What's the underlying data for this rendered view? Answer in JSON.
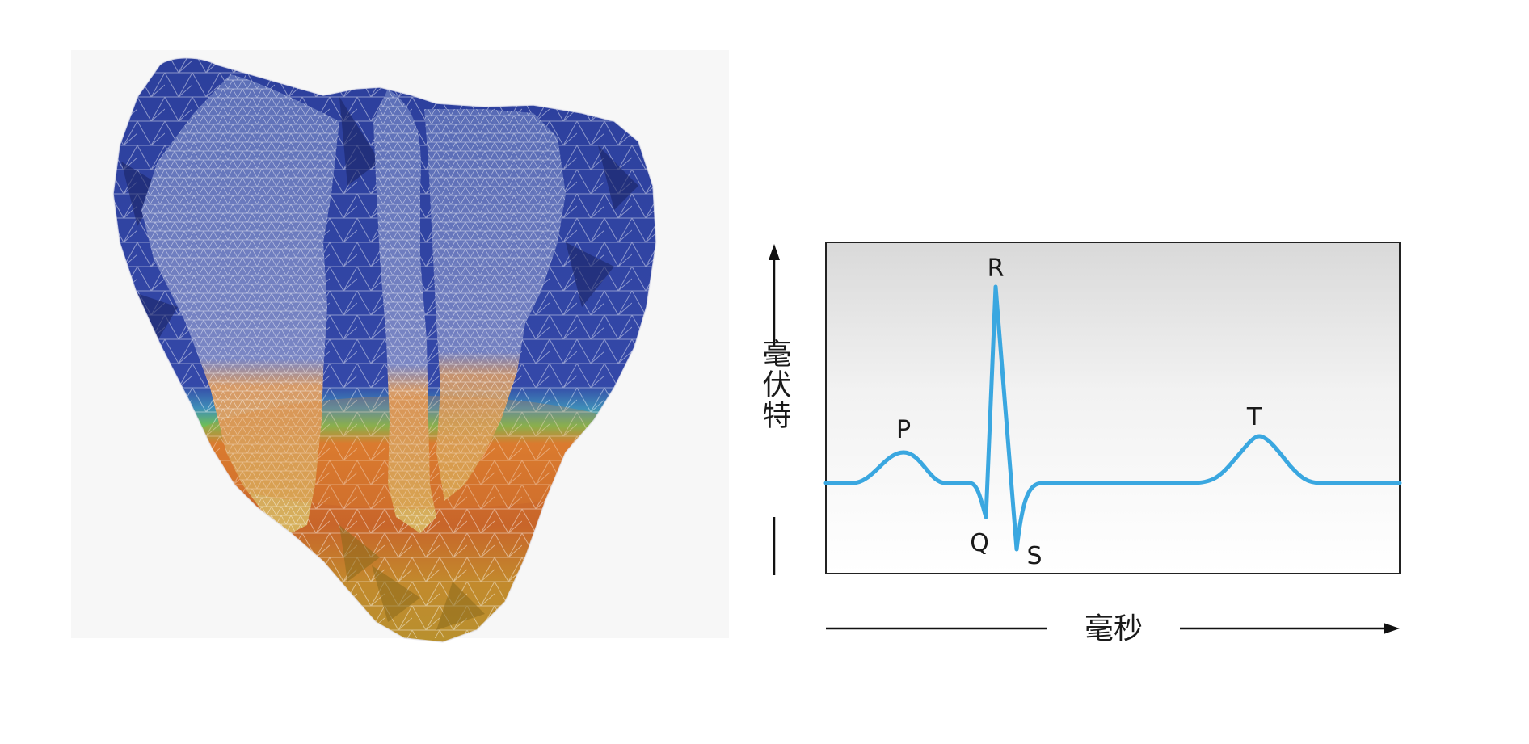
{
  "ecg": {
    "y_axis_label": "毫伏特",
    "x_axis_label": "毫秒",
    "waves": [
      {
        "label": "P"
      },
      {
        "label": "Q"
      },
      {
        "label": "R"
      },
      {
        "label": "S"
      },
      {
        "label": "T"
      }
    ],
    "trace_color": "#3aa7e0"
  },
  "heart_mesh": {
    "colors": {
      "cold": "#2a3f9e",
      "transition": "#4fb35a",
      "warm": "#d05a2a",
      "apex": "#c9952c"
    }
  }
}
